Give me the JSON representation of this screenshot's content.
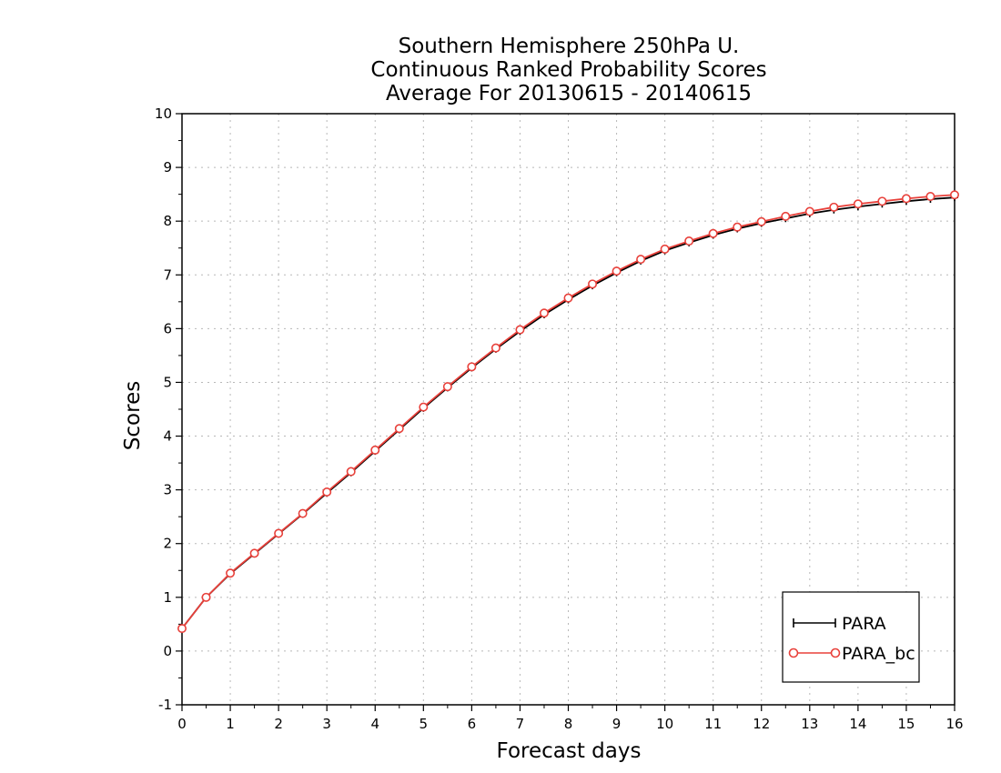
{
  "chart_data": {
    "type": "line",
    "title": [
      "Southern Hemisphere 250hPa U.",
      "Continuous Ranked Probability Scores",
      "Average For 20130615 - 20140615"
    ],
    "xlabel": "Forecast days",
    "ylabel": "Scores",
    "xlim": [
      0,
      16
    ],
    "ylim": [
      -1,
      10
    ],
    "xticks": [
      "0",
      "1",
      "2",
      "3",
      "4",
      "5",
      "6",
      "7",
      "8",
      "9",
      "10",
      "11",
      "12",
      "13",
      "14",
      "15",
      "16"
    ],
    "yticks": [
      "-1",
      "0",
      "1",
      "2",
      "3",
      "4",
      "5",
      "6",
      "7",
      "8",
      "9",
      "10"
    ],
    "grid": true,
    "legend_position": "bottom-right",
    "x": [
      0,
      0.5,
      1,
      1.5,
      2,
      2.5,
      3,
      3.5,
      4,
      4.5,
      5,
      5.5,
      6,
      6.5,
      7,
      7.5,
      8,
      8.5,
      9,
      9.5,
      10,
      10.5,
      11,
      11.5,
      12,
      12.5,
      13,
      13.5,
      14,
      14.5,
      15,
      15.5,
      16
    ],
    "series": [
      {
        "name": "PARA",
        "color": "#000000",
        "marker": "plus",
        "values": [
          0.42,
          1.0,
          1.44,
          1.81,
          2.18,
          2.55,
          2.94,
          3.32,
          3.72,
          4.12,
          4.52,
          4.9,
          5.27,
          5.62,
          5.95,
          6.26,
          6.54,
          6.8,
          7.04,
          7.26,
          7.45,
          7.6,
          7.74,
          7.86,
          7.96,
          8.05,
          8.14,
          8.21,
          8.27,
          8.32,
          8.37,
          8.41,
          8.44
        ]
      },
      {
        "name": "PARA_bc",
        "color": "#e8403a",
        "marker": "circle",
        "values": [
          0.42,
          1.0,
          1.45,
          1.82,
          2.19,
          2.56,
          2.96,
          3.34,
          3.74,
          4.14,
          4.54,
          4.92,
          5.29,
          5.64,
          5.98,
          6.29,
          6.57,
          6.83,
          7.07,
          7.29,
          7.48,
          7.63,
          7.77,
          7.89,
          7.99,
          8.09,
          8.18,
          8.26,
          8.32,
          8.37,
          8.42,
          8.46,
          8.49
        ]
      }
    ]
  }
}
